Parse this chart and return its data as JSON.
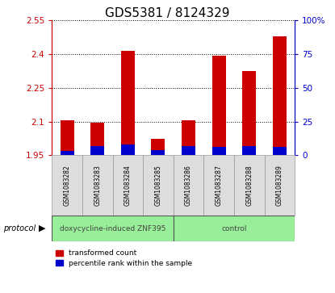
{
  "title": "GDS5381 / 8124329",
  "samples": [
    "GSM1083282",
    "GSM1083283",
    "GSM1083284",
    "GSM1083285",
    "GSM1083286",
    "GSM1083287",
    "GSM1083288",
    "GSM1083289"
  ],
  "transformed_counts": [
    2.105,
    2.095,
    2.415,
    2.025,
    2.105,
    2.395,
    2.325,
    2.48
  ],
  "percentile_values": [
    3,
    7,
    8,
    4,
    7,
    6,
    7,
    6
  ],
  "ylim_left": [
    1.95,
    2.55
  ],
  "ylim_right": [
    0,
    100
  ],
  "yticks_left": [
    1.95,
    2.1,
    2.25,
    2.4,
    2.55
  ],
  "yticks_right": [
    0,
    25,
    50,
    75,
    100
  ],
  "ytick_labels_left": [
    "1.95",
    "2.1",
    "2.25",
    "2.4",
    "2.55"
  ],
  "ytick_labels_right": [
    "0",
    "25",
    "50",
    "75",
    "100%"
  ],
  "base_value": 1.95,
  "red_color": "#cc0000",
  "blue_color": "#0000cc",
  "group1_label": "doxycycline-induced ZNF395",
  "group2_label": "control",
  "group1_indices": [
    0,
    1,
    2,
    3
  ],
  "group2_indices": [
    4,
    5,
    6,
    7
  ],
  "group_bg_color": "#99ee99",
  "sample_bg_color": "#dddddd",
  "legend_red_label": "transformed count",
  "legend_blue_label": "percentile rank within the sample",
  "protocol_label": "protocol",
  "title_fontsize": 11,
  "tick_fontsize": 7.5,
  "sample_label_fontsize": 5.5,
  "group_label_fontsize": 6.5,
  "legend_fontsize": 6.5
}
